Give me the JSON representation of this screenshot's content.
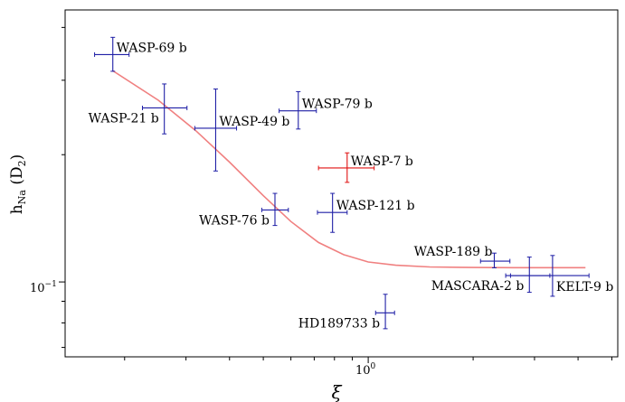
{
  "chart_data": {
    "type": "scatter",
    "title": "",
    "xlabel": "ξ",
    "ylabel_main": "h",
    "ylabel_sub": "Na",
    "ylabel_suffix": " (D",
    "ylabel_suffix_sub": "2",
    "ylabel_close": ")",
    "x_scale": "log",
    "y_scale": "log",
    "xlim": [
      0.135,
      5.2
    ],
    "ylim": [
      0.0665,
      0.44
    ],
    "x_tick_labels": [
      {
        "value": 1.0,
        "base": "10",
        "exp": "0"
      }
    ],
    "y_tick_labels": [
      {
        "value": 0.1,
        "base": "10",
        "exp": "−1"
      }
    ],
    "grid": false,
    "colors": {
      "points": "#1f1fa6",
      "highlight": "#e01010",
      "curve": "#f08080"
    },
    "points": [
      {
        "name": "WASP-69 b",
        "x": 0.185,
        "y": 0.345,
        "xerr": [
          0.021,
          0.021
        ],
        "yerr": [
          0.03,
          0.034
        ],
        "label_anchor": "right"
      },
      {
        "name": "WASP-21 b",
        "x": 0.26,
        "y": 0.258,
        "xerr": [
          0.035,
          0.042
        ],
        "yerr": [
          0.034,
          0.036
        ],
        "label_anchor": "left"
      },
      {
        "name": "WASP-49 b",
        "x": 0.365,
        "y": 0.231,
        "xerr": [
          0.047,
          0.054
        ],
        "yerr": [
          0.048,
          0.055
        ],
        "label_anchor": "right"
      },
      {
        "name": "WASP-79 b",
        "x": 0.63,
        "y": 0.254,
        "xerr": [
          0.075,
          0.08
        ],
        "yerr": [
          0.024,
          0.028
        ],
        "label_anchor": "right"
      },
      {
        "name": "WASP-7 b",
        "x": 0.87,
        "y": 0.186,
        "xerr": [
          0.15,
          0.17
        ],
        "yerr": [
          0.014,
          0.016
        ],
        "label_anchor": "right",
        "highlight": true
      },
      {
        "name": "WASP-76 b",
        "x": 0.54,
        "y": 0.148,
        "xerr": [
          0.045,
          0.05
        ],
        "yerr": [
          0.012,
          0.014
        ],
        "label_anchor": "left"
      },
      {
        "name": "WASP-121 b",
        "x": 0.79,
        "y": 0.146,
        "xerr": [
          0.075,
          0.08
        ],
        "yerr": [
          0.015,
          0.016
        ],
        "label_anchor": "right"
      },
      {
        "name": "WASP-189 b",
        "x": 2.3,
        "y": 0.112,
        "xerr": [
          0.2,
          0.25
        ],
        "yerr": [
          0.004,
          0.005
        ],
        "label_anchor": "left_above"
      },
      {
        "name": "MASCARA-2 b",
        "x": 2.9,
        "y": 0.1035,
        "xerr": [
          0.42,
          0.42
        ],
        "yerr": [
          0.009,
          0.011
        ],
        "label_anchor": "left"
      },
      {
        "name": "KELT-9 b",
        "x": 3.38,
        "y": 0.1035,
        "xerr": [
          0.82,
          0.92
        ],
        "yerr": [
          0.011,
          0.012
        ],
        "label_anchor": "right_below"
      },
      {
        "name": "HD189733 b",
        "x": 1.12,
        "y": 0.0845,
        "xerr": [
          0.07,
          0.07
        ],
        "yerr": [
          0.007,
          0.009
        ],
        "label_anchor": "left"
      }
    ],
    "model_curve": {
      "x": [
        0.185,
        0.25,
        0.32,
        0.4,
        0.5,
        0.6,
        0.72,
        0.85,
        1.0,
        1.2,
        1.5,
        2.0,
        2.6,
        3.3,
        4.2
      ],
      "y": [
        0.316,
        0.269,
        0.228,
        0.192,
        0.16,
        0.139,
        0.124,
        0.116,
        0.1115,
        0.1095,
        0.1085,
        0.1082,
        0.1081,
        0.1081,
        0.1081
      ]
    }
  }
}
